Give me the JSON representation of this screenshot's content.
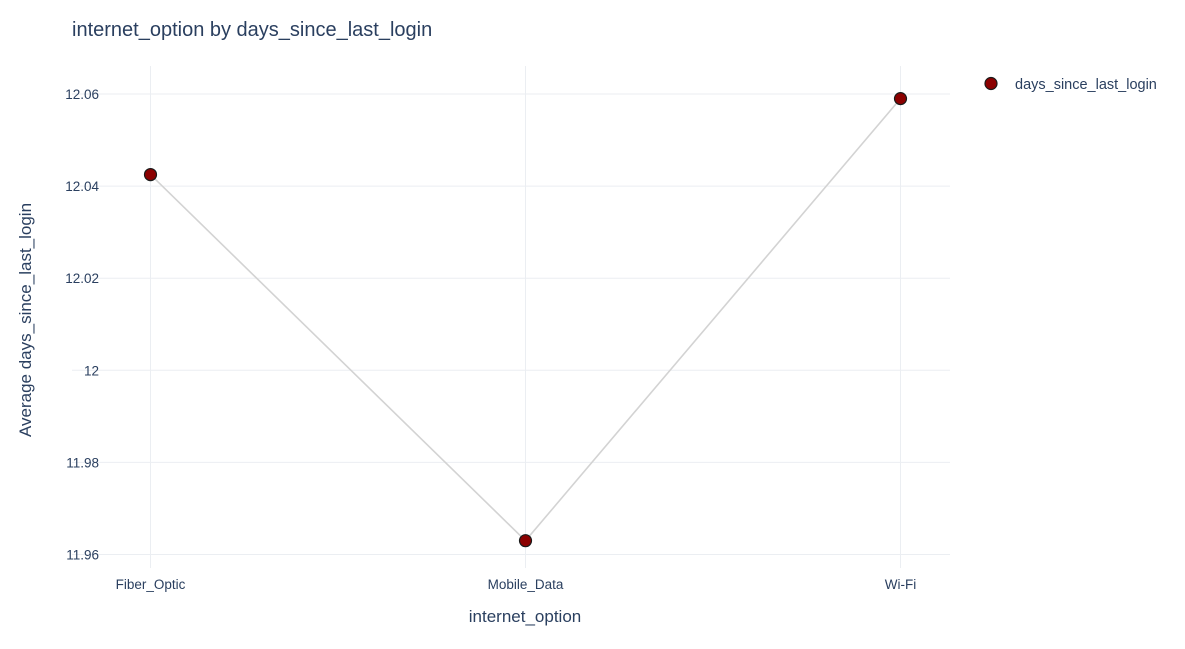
{
  "chart_data": {
    "type": "line",
    "title": "internet_option by days_since_last_login",
    "xlabel": "internet_option",
    "ylabel": "Average days_since_last_login",
    "categories": [
      "Fiber_Optic",
      "Mobile_Data",
      "Wi-Fi"
    ],
    "series": [
      {
        "name": "days_since_last_login",
        "values": [
          12.0425,
          11.963,
          12.059
        ]
      }
    ],
    "ylim": [
      11.955,
      12.066
    ],
    "yticks": [
      11.96,
      11.98,
      12,
      12.02,
      12.04,
      12.06
    ],
    "ytick_labels": [
      "11.96",
      "11.98",
      "12",
      "12.02",
      "12.04",
      "12.06"
    ],
    "grid": true,
    "legend_position": "top-right",
    "colors": {
      "marker_fill": "#8b0000",
      "marker_stroke": "#1a1a1a",
      "line": "#d3d3d3",
      "grid": "#ebeef2",
      "text": "#2a3f5f"
    }
  }
}
